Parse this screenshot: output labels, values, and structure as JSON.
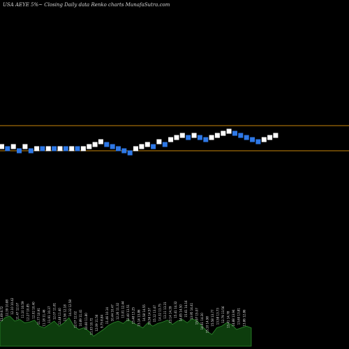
{
  "header": {
    "title": "USA AEYE 5%~  Closing Daily data  Renko  charts MunafaSutra.com"
  },
  "colors": {
    "background": "#000000",
    "up_brick": "#ffffff",
    "down_brick": "#2e78e6",
    "support_line": "#c8860a",
    "volume_fill": "#0d3d0d",
    "volume_outline": "#2c8a2c"
  },
  "chart_data": {
    "type": "renko",
    "title": "USA AEYE 5%~  Closing Daily data  Renko  charts MunafaSutra.com",
    "reference_lines": [
      {
        "name": "upper",
        "value": 36
      },
      {
        "name": "lower",
        "value": 0
      }
    ],
    "bricks": [
      {
        "dir": "up",
        "level": 6
      },
      {
        "dir": "down",
        "level": 3
      },
      {
        "dir": "up",
        "level": 6
      },
      {
        "dir": "down",
        "level": 0
      },
      {
        "dir": "up",
        "level": 6
      },
      {
        "dir": "down",
        "level": 0
      },
      {
        "dir": "up",
        "level": 3
      },
      {
        "dir": "down",
        "level": 3
      },
      {
        "dir": "up",
        "level": 3
      },
      {
        "dir": "down",
        "level": 3
      },
      {
        "dir": "up",
        "level": 3
      },
      {
        "dir": "down",
        "level": 3
      },
      {
        "dir": "up",
        "level": 3
      },
      {
        "dir": "down",
        "level": 3
      },
      {
        "dir": "up",
        "level": 3
      },
      {
        "dir": "up",
        "level": 6
      },
      {
        "dir": "up",
        "level": 9
      },
      {
        "dir": "up",
        "level": 13
      },
      {
        "dir": "down",
        "level": 9
      },
      {
        "dir": "down",
        "level": 6
      },
      {
        "dir": "down",
        "level": 3
      },
      {
        "dir": "down",
        "level": 0
      },
      {
        "dir": "down",
        "level": -3
      },
      {
        "dir": "up",
        "level": 3
      },
      {
        "dir": "up",
        "level": 6
      },
      {
        "dir": "up",
        "level": 9
      },
      {
        "dir": "down",
        "level": 6
      },
      {
        "dir": "up",
        "level": 13
      },
      {
        "dir": "down",
        "level": 9
      },
      {
        "dir": "up",
        "level": 16
      },
      {
        "dir": "up",
        "level": 19
      },
      {
        "dir": "up",
        "level": 22
      },
      {
        "dir": "down",
        "level": 19
      },
      {
        "dir": "up",
        "level": 22
      },
      {
        "dir": "down",
        "level": 19
      },
      {
        "dir": "down",
        "level": 16
      },
      {
        "dir": "up",
        "level": 19
      },
      {
        "dir": "up",
        "level": 22
      },
      {
        "dir": "up",
        "level": 25
      },
      {
        "dir": "up",
        "level": 28
      },
      {
        "dir": "down",
        "level": 25
      },
      {
        "dir": "down",
        "level": 22
      },
      {
        "dir": "down",
        "level": 19
      },
      {
        "dir": "down",
        "level": 16
      },
      {
        "dir": "down",
        "level": 13
      },
      {
        "dir": "up",
        "level": 16
      },
      {
        "dir": "up",
        "level": 19
      },
      {
        "dir": "up",
        "level": 22
      }
    ],
    "volume_labels": [
      "11.69 8.72",
      "12.39 10.88",
      "12.10 10.42",
      "11.47 12.07",
      "11.10 10.59",
      "12.27 10.85",
      "12.02 10.40",
      "11.77 10.91",
      "11.18 11.46",
      "11.91 10.37",
      "12.07 11.81",
      "12.48 11.40",
      "11.56 12.18",
      "14.32 12.58",
      "12.07 12.02",
      "10.89 11.41",
      "10.60 11.80",
      "11.03 10.72",
      "12.09 11.56",
      "9.75 8.84",
      "11.46 10.14",
      "10.44 10.47",
      "12.26 11.32",
      "13.01 12.44",
      "12.40 13.51",
      "13.48 13.25",
      "15.14 13.86",
      "14.58 14.55",
      "16.56 14.57",
      "15.12 13.47",
      "14.32 13.75",
      "13.11 13.31",
      "13.14 14.39",
      "15.41 14.32",
      "14.85 14.50",
      "15.61 14.16",
      "13.95 14.41",
      "15.97 15.07",
      "14.41 14.30",
      "15.10 14.98",
      "15.58 13.77",
      "13.58 13.73",
      "12.79 13.56",
      "13.41 14.78",
      "14.88 13.94",
      "13.60 13.81",
      "13.86 12.86"
    ],
    "volume_levels": [
      0.7,
      0.85,
      0.9,
      0.75,
      0.8,
      0.7,
      0.72,
      0.78,
      0.6,
      0.55,
      0.65,
      0.75,
      0.6,
      0.7,
      0.85,
      0.6,
      0.5,
      0.55,
      0.45,
      0.3,
      0.4,
      0.5,
      0.62,
      0.7,
      0.75,
      0.68,
      0.8,
      0.7,
      0.62,
      0.55,
      0.7,
      0.6,
      0.68,
      0.72,
      0.78,
      0.65,
      0.75,
      0.8,
      0.7,
      0.82,
      0.75,
      0.6,
      0.45,
      0.35,
      0.55,
      0.6,
      0.7,
      0.65,
      0.5,
      0.55,
      0.6,
      0.55
    ]
  }
}
